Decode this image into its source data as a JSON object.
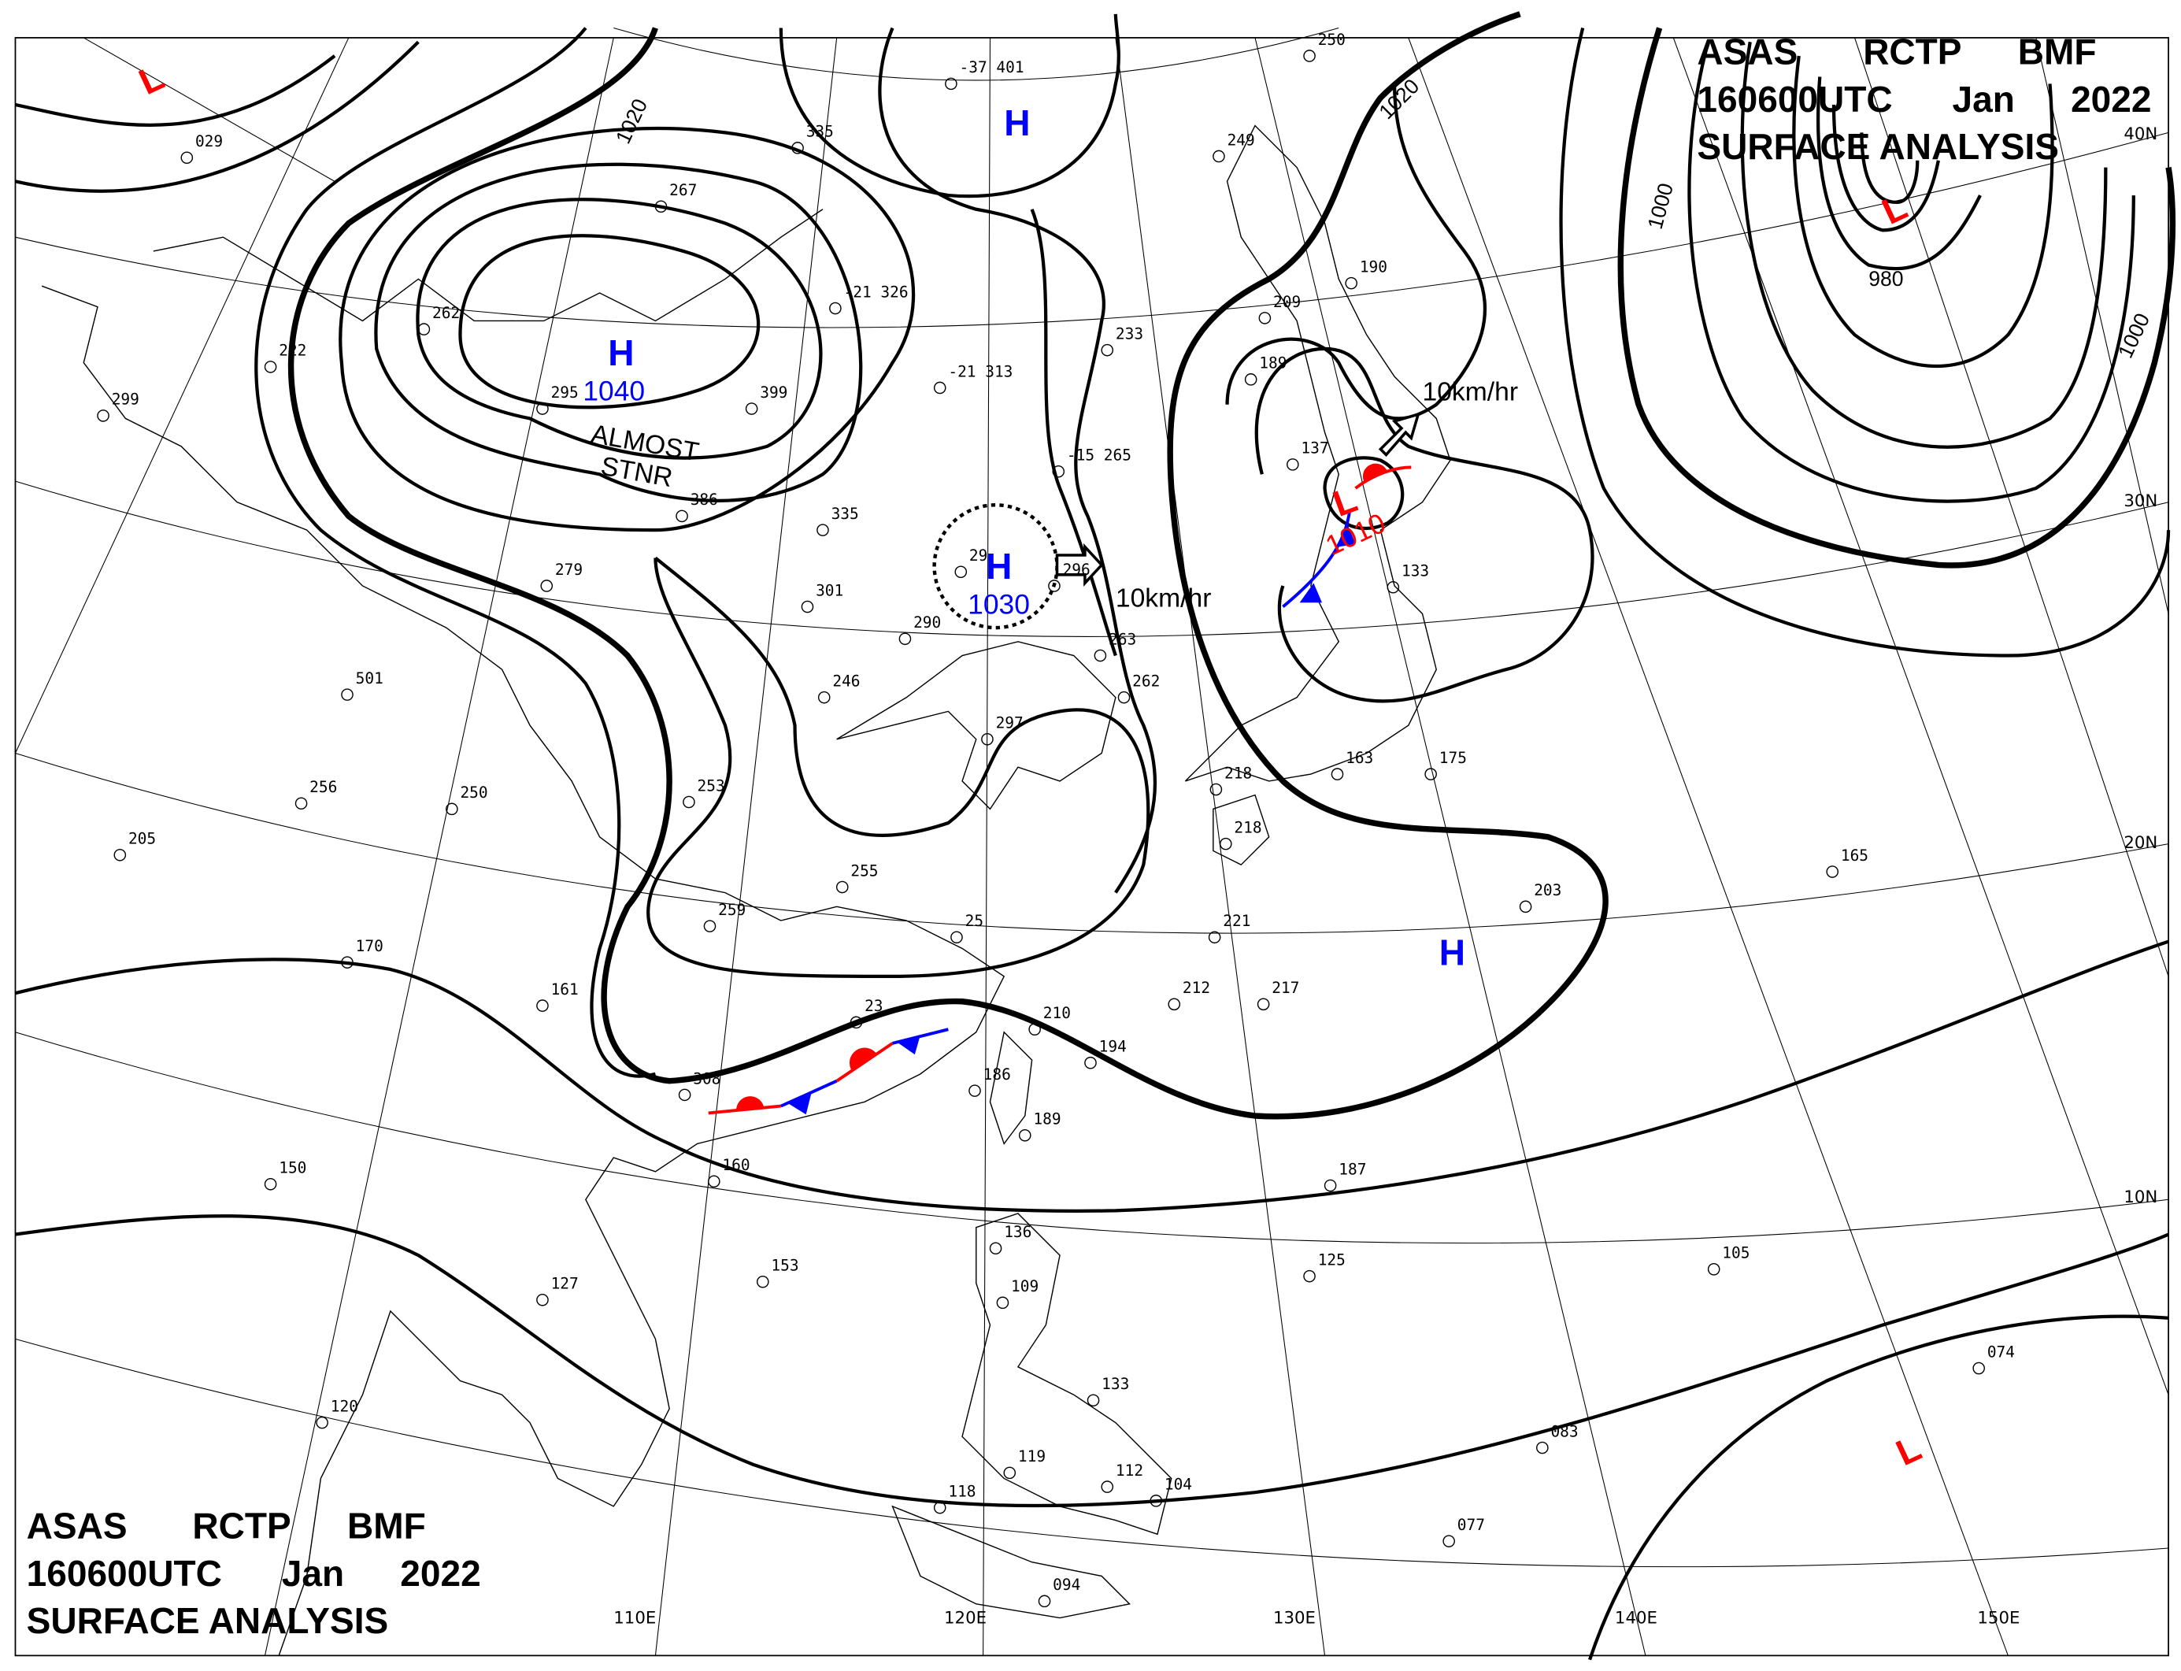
{
  "header": {
    "line1": [
      "ASAS",
      "RCTP",
      "BMF"
    ],
    "line2": [
      "160600UTC",
      "Jan",
      "2022"
    ],
    "line3": "SURFACE ANALYSIS"
  },
  "colors": {
    "high": "#0000ff",
    "low": "#ff0000",
    "cold_front": "#0000ff",
    "warm_front": "#ff0000",
    "isobar": "#000000"
  },
  "latitude_labels": [
    "40N",
    "30N",
    "20N",
    "10N"
  ],
  "longitude_labels": [
    "110E",
    "120E",
    "130E",
    "140E",
    "150E"
  ],
  "isobar_labels": [
    "1020",
    "1020",
    "1000",
    "980",
    "1000"
  ],
  "pressure_centers": [
    {
      "type": "L",
      "value": ""
    },
    {
      "type": "H",
      "value": ""
    },
    {
      "type": "H",
      "value": "1040"
    },
    {
      "type": "H",
      "value": "1030"
    },
    {
      "type": "L",
      "value": "1010"
    },
    {
      "type": "L",
      "value": ""
    },
    {
      "type": "H",
      "value": ""
    },
    {
      "type": "L",
      "value": ""
    }
  ],
  "annotations": {
    "stationary_note": [
      "ALMOST",
      "STNR"
    ],
    "motion_1": "10km/hr",
    "motion_2": "10km/hr"
  },
  "stations": [
    "029",
    "267",
    "335",
    "262",
    "222",
    "299",
    "295",
    "399",
    "-21 326",
    "-37 401",
    "-21 313",
    "233",
    "-15 265",
    "386",
    "335",
    "279",
    "301",
    "29",
    "296",
    "290",
    "246",
    "501",
    "297",
    "263",
    "262",
    "253",
    "256",
    "250",
    "205",
    "255",
    "259",
    "25",
    "221",
    "170",
    "161",
    "23",
    "210",
    "212",
    "217",
    "194",
    "308",
    "186",
    "189",
    "160",
    "150",
    "187",
    "203",
    "175",
    "163",
    "218",
    "218",
    "189",
    "137",
    "190",
    "209",
    "249",
    "250",
    "133",
    "165",
    "153",
    "127",
    "136",
    "109",
    "105",
    "125",
    "074",
    "083",
    "133",
    "104",
    "112",
    "119",
    "118",
    "094",
    "077",
    "120"
  ]
}
